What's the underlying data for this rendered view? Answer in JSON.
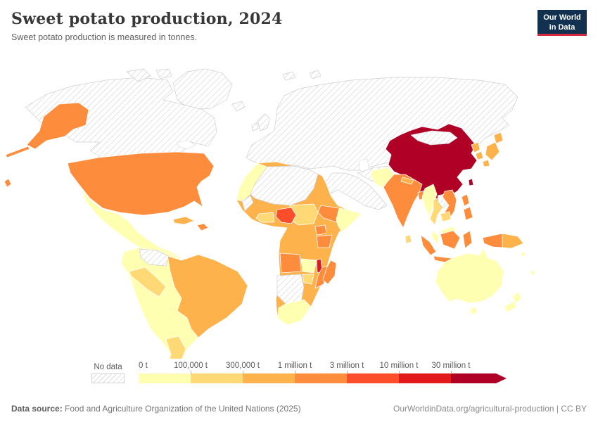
{
  "header": {
    "title": "Sweet potato production, 2024",
    "subtitle": "Sweet potato production is measured in tonnes.",
    "logo": {
      "line1": "Our World",
      "line2": "in Data",
      "bg": "#12304f",
      "accent": "#d42b3d"
    }
  },
  "legend": {
    "no_data_label": "No data",
    "bins": [
      {
        "label": "0 t",
        "color": "#ffffb2"
      },
      {
        "label": "100,000 t",
        "color": "#fed976"
      },
      {
        "label": "300,000 t",
        "color": "#feb24c"
      },
      {
        "label": "1 million t",
        "color": "#fd8d3c"
      },
      {
        "label": "3 million t",
        "color": "#fc4e2a"
      },
      {
        "label": "10 million t",
        "color": "#e31a1c"
      },
      {
        "label": "30 million t",
        "color": "#b10026"
      }
    ]
  },
  "footer": {
    "source_label": "Data source:",
    "source_text": " Food and Agriculture Organization of the United Nations (2025)",
    "link_text": "OurWorldinData.org/agricultural-production | CC BY"
  },
  "map": {
    "no_data_stroke": "#cfcfcf",
    "countries": {
      "usa": "#fd8d3c",
      "hawaii": "#fd8d3c",
      "mexico": "#ffffb2",
      "central-america": "#ffffb2",
      "cuba": "#feb24c",
      "hispaniola": "#fd8d3c",
      "south-america-base": "#ffffb2",
      "brazil": "#feb24c",
      "peru": "#fed976",
      "argentina": "#fed976",
      "africa-base": "#feb24c",
      "morocco": "#ffffb2",
      "sudan-chad": "#fed976",
      "nigeria": "#fc4e2a",
      "ghana-cotedivoire": "#fed976",
      "ethiopia": "#fd8d3c",
      "somalia": "#ffffb2",
      "uganda": "#fd8d3c",
      "tanzania": "#fd8d3c",
      "angola": "#fd8d3c",
      "zambia": "#ffffb2",
      "malawi": "#e31a1c",
      "mozambique": "#fd8d3c",
      "zimbabwe": "#fed976",
      "south-africa": "#ffffb2",
      "madagascar": "#fd8d3c",
      "china": "#b10026",
      "taiwan": "#b10026",
      "india": "#fd8d3c",
      "pakistan": "#ffffb2",
      "nepal": "#feb24c",
      "bangladesh": "#fd8d3c",
      "sri-lanka": "#fed976",
      "myanmar": "#ffffb2",
      "thailand": "#fed976",
      "vietnam": "#fd8d3c",
      "cambodia": "#fed976",
      "malaysia": "#ffffb2",
      "north-korea": "#feb24c",
      "south-korea": "#feb24c",
      "japan": "#feb24c",
      "philippines": "#fd8d3c",
      "indonesia": "#fd8d3c",
      "papua-new-guinea": "#feb24c",
      "australia": "#ffffb2",
      "new-zealand": "#ffffb2",
      "pacific-islands": "#ffffb2"
    }
  },
  "chart_data": {
    "type": "choropleth",
    "title": "Sweet potato production, 2024",
    "subtitle": "Sweet potato production is measured in tonnes.",
    "unit": "tonnes",
    "legend_bins": [
      "0 t",
      "100,000 t",
      "300,000 t",
      "1 million t",
      "3 million t",
      "10 million t",
      "30 million t"
    ],
    "bin_colors": [
      "#ffffb2",
      "#fed976",
      "#feb24c",
      "#fd8d3c",
      "#fc4e2a",
      "#e31a1c",
      "#b10026"
    ],
    "no_data_regions": [
      "Canada",
      "Greenland",
      "Venezuela",
      "Europe (all countries)",
      "Russia",
      "Kazakhstan & Central Asia",
      "Mongolia",
      "Turkey",
      "Middle East (Saudi Arabia, Iran, Iraq, etc.)",
      "Afghanistan",
      "Algeria",
      "Libya",
      "Tunisia",
      "Western Sahara",
      "Namibia",
      "Botswana",
      "Laos"
    ],
    "countries": [
      {
        "name": "China",
        "bin": "30 million t +"
      },
      {
        "name": "Malawi",
        "bin": "10–30 million t"
      },
      {
        "name": "Nigeria",
        "bin": "3–10 million t"
      },
      {
        "name": "United States",
        "bin": "1–3 million t"
      },
      {
        "name": "India",
        "bin": "1–3 million t"
      },
      {
        "name": "Vietnam",
        "bin": "1–3 million t"
      },
      {
        "name": "Indonesia",
        "bin": "1–3 million t"
      },
      {
        "name": "Philippines",
        "bin": "1–3 million t"
      },
      {
        "name": "Bangladesh",
        "bin": "1–3 million t"
      },
      {
        "name": "Ethiopia",
        "bin": "1–3 million t"
      },
      {
        "name": "Uganda",
        "bin": "1–3 million t"
      },
      {
        "name": "Tanzania",
        "bin": "1–3 million t"
      },
      {
        "name": "Angola",
        "bin": "1–3 million t"
      },
      {
        "name": "Mozambique",
        "bin": "1–3 million t"
      },
      {
        "name": "Madagascar",
        "bin": "1–3 million t"
      },
      {
        "name": "Burkina Faso",
        "bin": "1–3 million t"
      },
      {
        "name": "Haiti",
        "bin": "1–3 million t"
      },
      {
        "name": "Brazil",
        "bin": "300,000–1 million t"
      },
      {
        "name": "Egypt",
        "bin": "300,000–1 million t"
      },
      {
        "name": "Japan",
        "bin": "300,000–1 million t"
      },
      {
        "name": "North Korea",
        "bin": "300,000–1 million t"
      },
      {
        "name": "South Korea",
        "bin": "300,000–1 million t"
      },
      {
        "name": "Papua New Guinea",
        "bin": "300,000–1 million t"
      },
      {
        "name": "Kenya",
        "bin": "300,000–1 million t"
      },
      {
        "name": "Democratic Republic of Congo",
        "bin": "300,000–1 million t"
      },
      {
        "name": "Cameroon",
        "bin": "300,000–1 million t"
      },
      {
        "name": "Mali",
        "bin": "300,000–1 million t"
      },
      {
        "name": "Niger",
        "bin": "300,000–1 million t"
      },
      {
        "name": "Mauritania",
        "bin": "300,000–1 million t"
      },
      {
        "name": "Cuba",
        "bin": "300,000–1 million t"
      },
      {
        "name": "Nepal",
        "bin": "300,000–1 million t"
      },
      {
        "name": "Peru",
        "bin": "100,000–300,000 t"
      },
      {
        "name": "Argentina",
        "bin": "100,000–300,000 t"
      },
      {
        "name": "Sudan",
        "bin": "100,000–300,000 t"
      },
      {
        "name": "Chad",
        "bin": "100,000–300,000 t"
      },
      {
        "name": "Ghana",
        "bin": "100,000–300,000 t"
      },
      {
        "name": "Cote d'Ivoire",
        "bin": "100,000–300,000 t"
      },
      {
        "name": "Zimbabwe",
        "bin": "100,000–300,000 t"
      },
      {
        "name": "Thailand",
        "bin": "100,000–300,000 t"
      },
      {
        "name": "Cambodia",
        "bin": "100,000–300,000 t"
      },
      {
        "name": "Sri Lanka",
        "bin": "100,000–300,000 t"
      },
      {
        "name": "Mexico",
        "bin": "0–100,000 t"
      },
      {
        "name": "Colombia",
        "bin": "0–100,000 t"
      },
      {
        "name": "Bolivia",
        "bin": "0–100,000 t"
      },
      {
        "name": "Chile",
        "bin": "0–100,000 t"
      },
      {
        "name": "Uruguay",
        "bin": "0–100,000 t"
      },
      {
        "name": "Morocco",
        "bin": "0–100,000 t"
      },
      {
        "name": "Somalia",
        "bin": "0–100,000 t"
      },
      {
        "name": "Zambia",
        "bin": "0–100,000 t"
      },
      {
        "name": "South Africa",
        "bin": "0–100,000 t"
      },
      {
        "name": "Pakistan",
        "bin": "0–100,000 t"
      },
      {
        "name": "Myanmar",
        "bin": "0–100,000 t"
      },
      {
        "name": "Malaysia",
        "bin": "0–100,000 t"
      },
      {
        "name": "Australia",
        "bin": "0–100,000 t"
      },
      {
        "name": "New Zealand",
        "bin": "0–100,000 t"
      }
    ]
  }
}
